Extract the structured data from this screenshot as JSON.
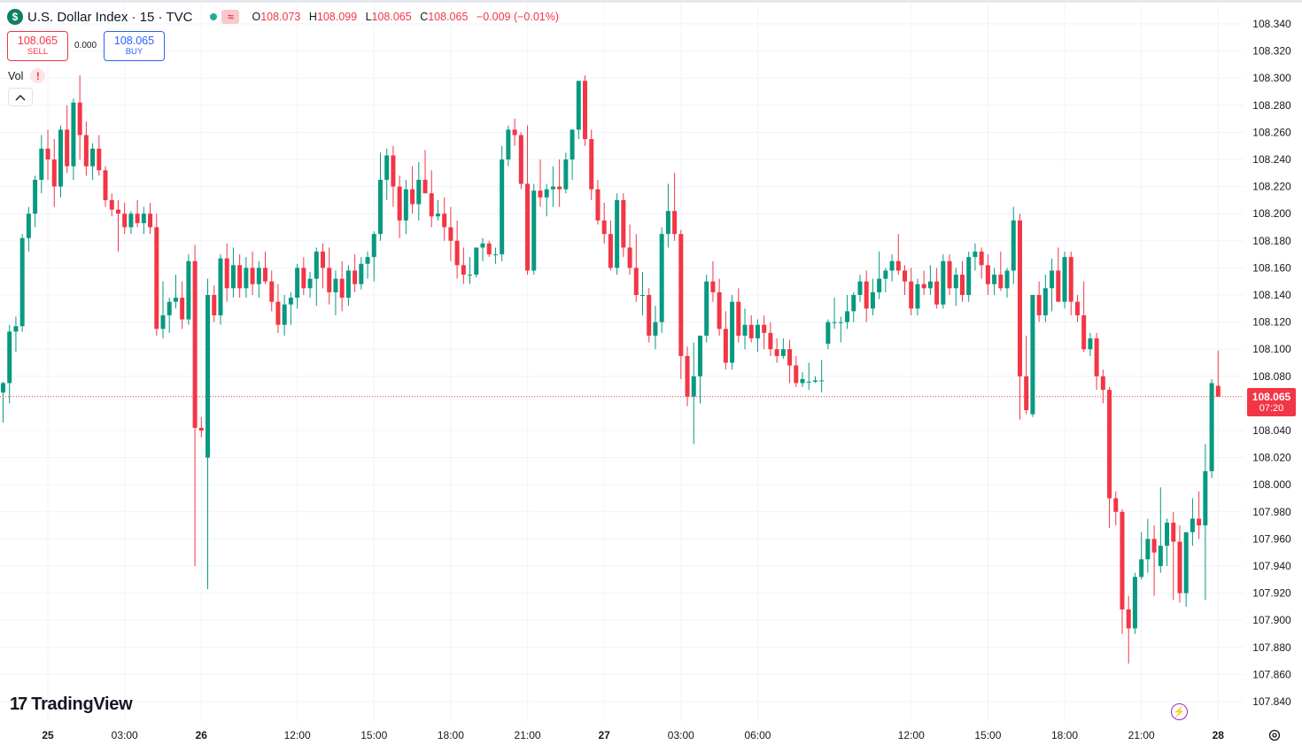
{
  "header": {
    "symbol_icon": "$",
    "title": "U.S. Dollar Index · 15 · TVC",
    "wave_icon": "≈",
    "ohlc": {
      "o_label": "O",
      "o": "108.073",
      "h_label": "H",
      "h": "108.099",
      "l_label": "L",
      "l": "108.065",
      "c_label": "C",
      "c": "108.065",
      "change": "−0.009 (−0.01%)"
    }
  },
  "trade": {
    "sell_price": "108.065",
    "sell_label": "SELL",
    "spread": "0.000",
    "buy_price": "108.065",
    "buy_label": "BUY"
  },
  "indicator": {
    "vol_label": "Vol",
    "warning_icon": "!"
  },
  "branding": {
    "logo_mark": "17",
    "logo_text": "TradingView"
  },
  "last_price": {
    "value": "108.065",
    "countdown": "07:20"
  },
  "colors": {
    "up": "#089981",
    "down": "#f23645",
    "grid": "#f0f3fa",
    "text": "#131722"
  },
  "chart_data": {
    "type": "candlestick",
    "interval": "15",
    "ylim": [
      107.825,
      108.345
    ],
    "y_ticks": [
      "108.340",
      "108.320",
      "108.300",
      "108.280",
      "108.260",
      "108.240",
      "108.220",
      "108.200",
      "108.180",
      "108.160",
      "108.140",
      "108.120",
      "108.100",
      "108.080",
      "108.040",
      "108.020",
      "108.000",
      "107.980",
      "107.960",
      "107.940",
      "107.920",
      "107.900",
      "107.880",
      "107.860",
      "107.840"
    ],
    "x_ticks": [
      {
        "label": "25",
        "bar": 7,
        "bold": true
      },
      {
        "label": "03:00",
        "bar": 19
      },
      {
        "label": "26",
        "bar": 31,
        "bold": true
      },
      {
        "label": "12:00",
        "bar": 46
      },
      {
        "label": "15:00",
        "bar": 58
      },
      {
        "label": "18:00",
        "bar": 70
      },
      {
        "label": "21:00",
        "bar": 82
      },
      {
        "label": "27",
        "bar": 94,
        "bold": true
      },
      {
        "label": "03:00",
        "bar": 106
      },
      {
        "label": "06:00",
        "bar": 118
      },
      {
        "label": "12:00",
        "bar": 142
      },
      {
        "label": "15:00",
        "bar": 154
      },
      {
        "label": "18:00",
        "bar": 166
      },
      {
        "label": "21:00",
        "bar": 178
      },
      {
        "label": "28",
        "bar": 190,
        "bold": true
      }
    ],
    "last_price": 108.065,
    "ohlc": [
      [
        108.068,
        108.076,
        108.046,
        108.075
      ],
      [
        108.075,
        108.118,
        108.06,
        108.113
      ],
      [
        108.113,
        108.124,
        108.098,
        108.117
      ],
      [
        108.117,
        108.185,
        108.113,
        108.182
      ],
      [
        108.182,
        108.205,
        108.172,
        108.2
      ],
      [
        108.2,
        108.228,
        108.19,
        108.225
      ],
      [
        108.225,
        108.258,
        108.215,
        108.248
      ],
      [
        108.248,
        108.262,
        108.225,
        108.24
      ],
      [
        108.24,
        108.255,
        108.205,
        108.22
      ],
      [
        108.22,
        108.265,
        108.212,
        108.262
      ],
      [
        108.262,
        108.28,
        108.23,
        108.235
      ],
      [
        108.235,
        108.285,
        108.225,
        108.282
      ],
      [
        108.282,
        108.302,
        108.24,
        108.258
      ],
      [
        108.258,
        108.268,
        108.228,
        108.235
      ],
      [
        108.235,
        108.252,
        108.225,
        108.248
      ],
      [
        108.248,
        108.258,
        108.228,
        108.232
      ],
      [
        108.232,
        108.235,
        108.205,
        108.21
      ],
      [
        108.21,
        108.215,
        108.198,
        108.203
      ],
      [
        108.203,
        108.21,
        108.172,
        108.2
      ],
      [
        108.2,
        108.208,
        108.185,
        108.19
      ],
      [
        108.19,
        108.202,
        108.185,
        108.2
      ],
      [
        108.2,
        108.21,
        108.19,
        108.193
      ],
      [
        108.193,
        108.205,
        108.185,
        108.2
      ],
      [
        108.2,
        108.208,
        108.185,
        108.19
      ],
      [
        108.19,
        108.2,
        108.11,
        108.115
      ],
      [
        108.115,
        108.15,
        108.108,
        108.125
      ],
      [
        108.125,
        108.138,
        108.112,
        108.135
      ],
      [
        108.135,
        108.155,
        108.13,
        108.138
      ],
      [
        108.138,
        108.15,
        108.115,
        108.122
      ],
      [
        108.122,
        108.17,
        108.118,
        108.165
      ],
      [
        108.165,
        108.177,
        107.94,
        108.042
      ],
      [
        108.042,
        108.05,
        108.035,
        108.04
      ],
      [
        108.02,
        108.152,
        107.923,
        108.14
      ],
      [
        108.14,
        108.147,
        108.12,
        108.125
      ],
      [
        108.125,
        108.17,
        108.118,
        108.167
      ],
      [
        108.167,
        108.178,
        108.135,
        108.145
      ],
      [
        108.145,
        108.175,
        108.138,
        108.162
      ],
      [
        108.162,
        108.17,
        108.138,
        108.145
      ],
      [
        108.145,
        108.168,
        108.138,
        108.16
      ],
      [
        108.16,
        108.172,
        108.14,
        108.148
      ],
      [
        108.148,
        108.165,
        108.138,
        108.16
      ],
      [
        108.16,
        108.172,
        108.148,
        108.15
      ],
      [
        108.15,
        108.158,
        108.128,
        108.135
      ],
      [
        108.135,
        108.148,
        108.112,
        108.118
      ],
      [
        108.118,
        108.14,
        108.11,
        108.133
      ],
      [
        108.133,
        108.142,
        108.118,
        108.138
      ],
      [
        108.138,
        108.163,
        108.13,
        108.16
      ],
      [
        108.16,
        108.168,
        108.14,
        108.145
      ],
      [
        108.145,
        108.157,
        108.138,
        108.152
      ],
      [
        108.152,
        108.175,
        108.132,
        108.172
      ],
      [
        108.172,
        108.178,
        108.145,
        108.16
      ],
      [
        108.16,
        108.175,
        108.133,
        108.142
      ],
      [
        108.142,
        108.158,
        108.125,
        108.152
      ],
      [
        108.152,
        108.165,
        108.128,
        108.138
      ],
      [
        108.138,
        108.162,
        108.132,
        108.158
      ],
      [
        108.158,
        108.17,
        108.142,
        108.148
      ],
      [
        108.148,
        108.168,
        108.144,
        108.163
      ],
      [
        108.163,
        108.172,
        108.152,
        108.168
      ],
      [
        108.168,
        108.187,
        108.15,
        108.185
      ],
      [
        108.185,
        108.245,
        108.18,
        108.225
      ],
      [
        108.225,
        108.248,
        108.21,
        108.243
      ],
      [
        108.243,
        108.25,
        108.205,
        108.22
      ],
      [
        108.22,
        108.228,
        108.182,
        108.195
      ],
      [
        108.195,
        108.225,
        108.185,
        108.218
      ],
      [
        108.218,
        108.235,
        108.2,
        108.207
      ],
      [
        108.207,
        108.238,
        108.195,
        108.225
      ],
      [
        108.225,
        108.247,
        108.215,
        108.215
      ],
      [
        108.215,
        108.232,
        108.19,
        108.198
      ],
      [
        108.198,
        108.21,
        108.195,
        108.2
      ],
      [
        108.2,
        108.212,
        108.18,
        108.19
      ],
      [
        108.19,
        108.205,
        108.165,
        108.18
      ],
      [
        108.18,
        108.195,
        108.152,
        108.162
      ],
      [
        108.162,
        108.175,
        108.148,
        108.155
      ],
      [
        108.155,
        108.168,
        108.148,
        108.155
      ],
      [
        108.155,
        108.175,
        108.153,
        108.175
      ],
      [
        108.175,
        108.182,
        108.165,
        108.178
      ],
      [
        108.178,
        108.18,
        108.168,
        108.17
      ],
      [
        108.17,
        108.175,
        108.163,
        108.17
      ],
      [
        108.17,
        108.25,
        108.165,
        108.24
      ],
      [
        108.24,
        108.265,
        108.235,
        108.262
      ],
      [
        108.262,
        108.27,
        108.25,
        108.258
      ],
      [
        108.258,
        108.26,
        108.218,
        108.222
      ],
      [
        108.222,
        108.265,
        108.155,
        108.158
      ],
      [
        108.158,
        108.222,
        108.155,
        108.217
      ],
      [
        108.217,
        108.24,
        108.205,
        108.212
      ],
      [
        108.212,
        108.222,
        108.198,
        108.218
      ],
      [
        108.218,
        108.235,
        108.205,
        108.22
      ],
      [
        108.22,
        108.24,
        108.205,
        108.218
      ],
      [
        108.218,
        108.245,
        108.215,
        108.24
      ],
      [
        108.24,
        108.262,
        108.225,
        108.262
      ],
      [
        108.262,
        108.298,
        108.255,
        108.298
      ],
      [
        108.298,
        108.302,
        108.25,
        108.255
      ],
      [
        108.255,
        108.262,
        108.21,
        108.218
      ],
      [
        108.218,
        108.225,
        108.192,
        108.195
      ],
      [
        108.195,
        108.208,
        108.178,
        108.185
      ],
      [
        108.185,
        108.195,
        108.158,
        108.16
      ],
      [
        108.16,
        108.215,
        108.155,
        108.21
      ],
      [
        108.21,
        108.215,
        108.168,
        108.175
      ],
      [
        108.175,
        108.192,
        108.155,
        108.16
      ],
      [
        108.16,
        108.185,
        108.135,
        108.14
      ],
      [
        108.14,
        108.157,
        108.125,
        108.14
      ],
      [
        108.14,
        108.145,
        108.105,
        108.11
      ],
      [
        108.11,
        108.132,
        108.1,
        108.12
      ],
      [
        108.12,
        108.19,
        108.112,
        108.185
      ],
      [
        108.185,
        108.222,
        108.175,
        108.202
      ],
      [
        108.202,
        108.23,
        108.18,
        108.185
      ],
      [
        108.185,
        108.188,
        108.078,
        108.095
      ],
      [
        108.095,
        108.102,
        108.058,
        108.065
      ],
      [
        108.065,
        108.105,
        108.03,
        108.08
      ],
      [
        108.08,
        108.11,
        108.06,
        108.11
      ],
      [
        108.11,
        108.155,
        108.105,
        108.15
      ],
      [
        108.15,
        108.165,
        108.135,
        108.142
      ],
      [
        108.142,
        108.152,
        108.11,
        108.115
      ],
      [
        108.115,
        108.128,
        108.085,
        108.09
      ],
      [
        108.09,
        108.14,
        108.085,
        108.135
      ],
      [
        108.135,
        108.145,
        108.105,
        108.11
      ],
      [
        108.11,
        108.13,
        108.1,
        108.118
      ],
      [
        108.118,
        108.125,
        108.105,
        108.108
      ],
      [
        108.108,
        108.122,
        108.098,
        108.118
      ],
      [
        108.118,
        108.125,
        108.1,
        108.112
      ],
      [
        108.112,
        108.12,
        108.095,
        108.1
      ],
      [
        108.1,
        108.108,
        108.09,
        108.095
      ],
      [
        108.095,
        108.108,
        108.093,
        108.1
      ],
      [
        108.1,
        108.107,
        108.075,
        108.088
      ],
      [
        108.088,
        108.095,
        108.072,
        108.075
      ],
      [
        108.075,
        108.083,
        108.072,
        108.078
      ],
      [
        108.076,
        108.09,
        108.07,
        108.076
      ],
      [
        108.076,
        108.08,
        108.075,
        108.077
      ],
      [
        108.077,
        108.092,
        108.068,
        108.077
      ],
      [
        108.104,
        108.122,
        108.1,
        108.12
      ],
      [
        108.12,
        108.138,
        108.115,
        108.12
      ],
      [
        108.12,
        108.124,
        108.105,
        108.12
      ],
      [
        108.12,
        108.14,
        108.115,
        108.128
      ],
      [
        108.128,
        108.142,
        108.12,
        108.14
      ],
      [
        108.14,
        108.155,
        108.135,
        108.15
      ],
      [
        108.15,
        108.158,
        108.12,
        108.13
      ],
      [
        108.13,
        108.152,
        108.125,
        108.142
      ],
      [
        108.142,
        108.172,
        108.137,
        108.152
      ],
      [
        108.152,
        108.16,
        108.142,
        108.158
      ],
      [
        108.158,
        108.17,
        108.15,
        108.165
      ],
      [
        108.165,
        108.185,
        108.155,
        108.158
      ],
      [
        108.158,
        108.162,
        108.14,
        108.15
      ],
      [
        108.15,
        108.16,
        108.125,
        108.13
      ],
      [
        108.13,
        108.152,
        108.125,
        108.148
      ],
      [
        108.148,
        108.158,
        108.14,
        108.145
      ],
      [
        108.145,
        108.162,
        108.14,
        108.15
      ],
      [
        108.15,
        108.16,
        108.13,
        108.133
      ],
      [
        108.133,
        108.17,
        108.13,
        108.165
      ],
      [
        108.165,
        108.17,
        108.14,
        108.145
      ],
      [
        108.145,
        108.16,
        108.132,
        108.155
      ],
      [
        108.155,
        108.165,
        108.135,
        108.14
      ],
      [
        108.14,
        108.172,
        108.135,
        108.168
      ],
      [
        108.168,
        108.178,
        108.158,
        108.172
      ],
      [
        108.172,
        108.175,
        108.152,
        108.162
      ],
      [
        108.162,
        108.17,
        108.14,
        108.148
      ],
      [
        108.148,
        108.16,
        108.14,
        108.155
      ],
      [
        108.155,
        108.172,
        108.143,
        108.145
      ],
      [
        108.145,
        108.16,
        108.138,
        108.158
      ],
      [
        108.158,
        108.205,
        108.148,
        108.195
      ],
      [
        108.195,
        108.2,
        108.048,
        108.08
      ],
      [
        108.08,
        108.11,
        108.052,
        108.055
      ],
      [
        108.052,
        108.14,
        108.05,
        108.14
      ],
      [
        108.14,
        108.15,
        108.12,
        108.125
      ],
      [
        108.125,
        108.155,
        108.12,
        108.145
      ],
      [
        108.145,
        108.167,
        108.128,
        108.158
      ],
      [
        108.158,
        108.175,
        108.135,
        108.135
      ],
      [
        108.135,
        108.172,
        108.13,
        108.168
      ],
      [
        108.168,
        108.172,
        108.125,
        108.135
      ],
      [
        108.135,
        108.14,
        108.12,
        108.125
      ],
      [
        108.125,
        108.15,
        108.098,
        108.1
      ],
      [
        108.1,
        108.112,
        108.095,
        108.108
      ],
      [
        108.108,
        108.112,
        108.07,
        108.08
      ],
      [
        108.08,
        108.085,
        108.06,
        108.07
      ],
      [
        108.07,
        108.072,
        107.968,
        107.99
      ],
      [
        107.99,
        107.995,
        107.97,
        107.98
      ],
      [
        107.98,
        107.982,
        107.89,
        107.908
      ],
      [
        107.908,
        107.918,
        107.868,
        107.894
      ],
      [
        107.894,
        107.935,
        107.89,
        107.932
      ],
      [
        107.932,
        107.965,
        107.93,
        107.945
      ],
      [
        107.945,
        107.975,
        107.935,
        107.96
      ],
      [
        107.96,
        107.97,
        107.918,
        107.95
      ],
      [
        107.94,
        107.998,
        107.935,
        107.955
      ],
      [
        107.955,
        107.975,
        107.94,
        107.972
      ],
      [
        107.972,
        107.98,
        107.915,
        107.958
      ],
      [
        107.958,
        107.97,
        107.913,
        107.92
      ],
      [
        107.92,
        107.962,
        107.91,
        107.965
      ],
      [
        107.965,
        107.99,
        107.955,
        107.975
      ],
      [
        107.975,
        107.995,
        107.96,
        107.97
      ],
      [
        107.97,
        108.03,
        107.915,
        108.01
      ],
      [
        108.01,
        108.078,
        108.005,
        108.075
      ],
      [
        108.073,
        108.099,
        108.065,
        108.065
      ]
    ]
  }
}
